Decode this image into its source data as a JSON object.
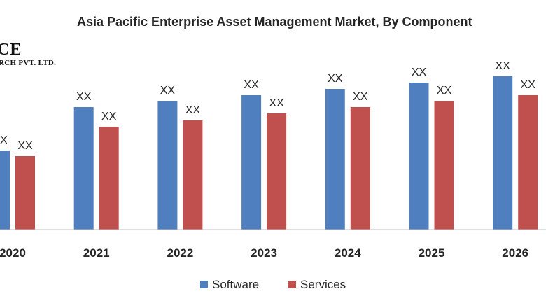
{
  "logo": {
    "line1": "CE",
    "line2": "RCH PVT. LTD."
  },
  "colors": {
    "software": "#4f7fbf",
    "services": "#c0504d",
    "axis": "#bfbfbf",
    "text": "#262626"
  },
  "chart_data": {
    "type": "bar",
    "title": "Asia Pacific Enterprise Asset Management Market, By Component",
    "xlabel": "",
    "ylabel": "",
    "categories": [
      "2020",
      "2021",
      "2022",
      "2023",
      "2024",
      "2025",
      "2026"
    ],
    "series": [
      {
        "name": "Software",
        "values": [
          113,
          175,
          184,
          192,
          201,
          210,
          219
        ],
        "labels": [
          "XX",
          "XX",
          "XX",
          "XX",
          "XX",
          "XX",
          "XX"
        ]
      },
      {
        "name": "Services",
        "values": [
          105,
          147,
          156,
          166,
          175,
          184,
          192
        ],
        "labels": [
          "XX",
          "XX",
          "XX",
          "XX",
          "XX",
          "XX",
          "XX"
        ]
      }
    ],
    "ylim": [
      0,
      240
    ],
    "grid": false,
    "legend_position": "bottom"
  }
}
